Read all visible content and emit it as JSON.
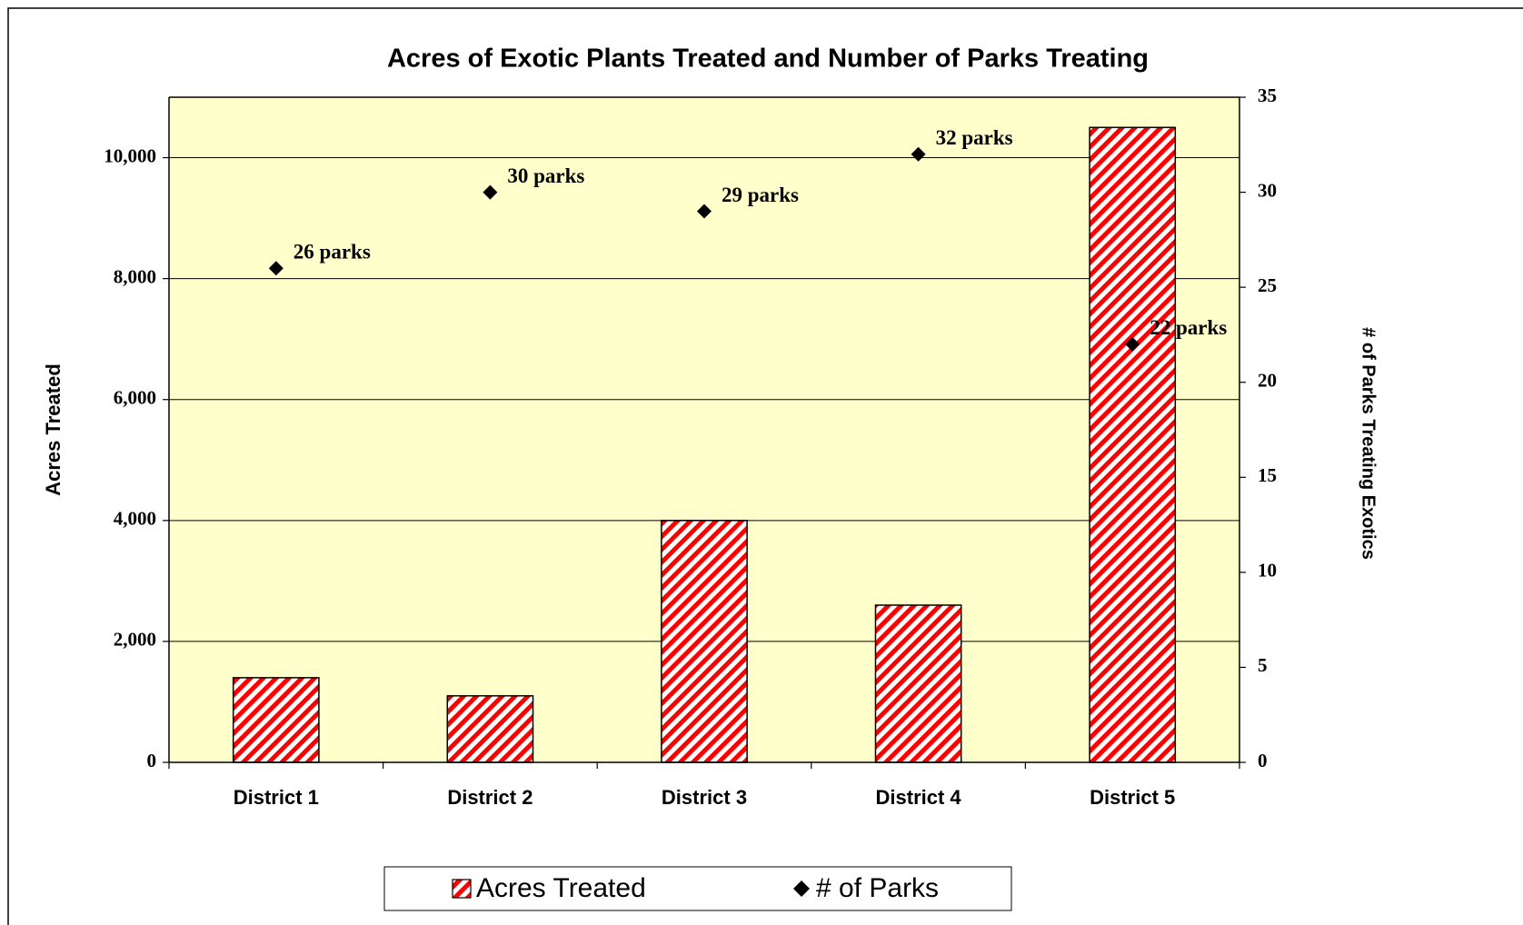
{
  "chart_data": {
    "type": "bar",
    "title": "Acres of Exotic Plants Treated and Number of Parks Treating",
    "categories": [
      "District 1",
      "District 2",
      "District 3",
      "District 4",
      "District 5"
    ],
    "series": [
      {
        "name": "Acres Treated",
        "type": "bar",
        "color": "#ff0000",
        "values": [
          1400,
          1100,
          4000,
          2600,
          10500
        ]
      },
      {
        "name": "# of Parks",
        "type": "scatter",
        "axis": "y2",
        "color": "#000000",
        "values": [
          26,
          30,
          29,
          32,
          22
        ],
        "value_labels": [
          "26 parks",
          "30 parks",
          "29 parks",
          "32 parks",
          "22 parks"
        ]
      }
    ],
    "ylabel": "Acres Treated",
    "y2label": "# of Parks Treating Exotics",
    "ylim": [
      0,
      11000
    ],
    "yticks": [
      0,
      {
        "value": 2000,
        "label": "2,000"
      },
      {
        "value": 4000,
        "label": "4,000"
      },
      {
        "value": 6000,
        "label": "6,000"
      },
      {
        "value": 8000,
        "label": "8,000"
      },
      {
        "value": 10000,
        "label": "10,000"
      }
    ],
    "y2lim": [
      0,
      35
    ],
    "y2ticks": [
      0,
      5,
      10,
      15,
      20,
      25,
      30,
      35
    ],
    "grid": true,
    "plot_background": "#ffffcc",
    "legend": "bottom"
  }
}
